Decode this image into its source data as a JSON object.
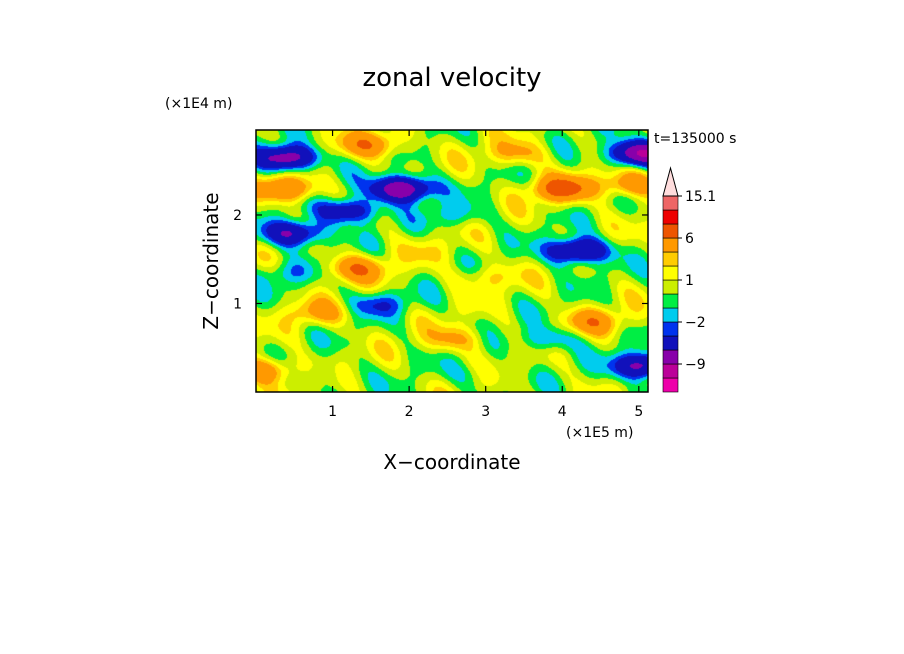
{
  "chart_data": {
    "type": "heatmap",
    "title": "zonal velocity",
    "xlabel": "X−coordinate",
    "ylabel": "Z−coordinate",
    "x_unit_label": "(×1E5 m)",
    "y_unit_label": "(×1E4 m)",
    "time_label": "t=135000 s",
    "xlim": [
      0,
      5.12
    ],
    "ylim": [
      0,
      2.96
    ],
    "x_ticks": [
      1,
      2,
      3,
      4,
      5
    ],
    "y_ticks": [
      1,
      2
    ],
    "x_tick_labels": [
      "1",
      "2",
      "3",
      "4",
      "5"
    ],
    "y_tick_labels": [
      "1",
      "2"
    ],
    "colorbar": {
      "levels": [
        -15,
        -12,
        -9,
        -6,
        -3,
        -2,
        -1,
        0,
        1,
        2,
        3,
        6,
        9,
        12,
        15.1
      ],
      "colors": [
        "#ee00aa",
        "#bb0099",
        "#8800aa",
        "#1111bb",
        "#0033ee",
        "#00ccee",
        "#00ee44",
        "#ccee00",
        "#ffff00",
        "#ffcc00",
        "#ff9900",
        "#ee5500",
        "#ee0000",
        "#ee6666",
        "#f4aaaa",
        "#ffdddd"
      ],
      "tick_labels": [
        "15.1",
        "6",
        "1",
        "−2",
        "−9"
      ],
      "tick_values": [
        15.1,
        6,
        1,
        -2,
        -9
      ],
      "extend": "max"
    },
    "features": [
      {
        "x": 0.4,
        "z": 2.65,
        "value": -9
      },
      {
        "x": 1.9,
        "z": 2.3,
        "value": -10
      },
      {
        "x": 5.0,
        "z": 2.7,
        "value": -10
      },
      {
        "x": 0.5,
        "z": 1.8,
        "value": -7
      },
      {
        "x": 4.2,
        "z": 1.6,
        "value": -8
      },
      {
        "x": 1.2,
        "z": 2.05,
        "value": -6
      },
      {
        "x": 1.5,
        "z": 2.8,
        "value": 5
      },
      {
        "x": 0.4,
        "z": 2.3,
        "value": 6
      },
      {
        "x": 4.0,
        "z": 2.3,
        "value": 7
      },
      {
        "x": 4.9,
        "z": 2.35,
        "value": 5
      },
      {
        "x": 1.3,
        "z": 1.4,
        "value": 5
      },
      {
        "x": 0.8,
        "z": 0.9,
        "value": 3
      },
      {
        "x": 2.6,
        "z": 0.6,
        "value": 3
      },
      {
        "x": 4.4,
        "z": 0.8,
        "value": 4
      },
      {
        "x": 3.4,
        "z": 2.7,
        "value": 3
      },
      {
        "x": 1.6,
        "z": 1.0,
        "value": -3
      },
      {
        "x": 3.8,
        "z": 0.6,
        "value": -3
      },
      {
        "x": 2.6,
        "z": 2.0,
        "value": -2
      },
      {
        "x": 0.4,
        "z": 1.35,
        "value": -2
      },
      {
        "x": 0.1,
        "z": 0.25,
        "value": 5
      },
      {
        "x": 5.05,
        "z": 0.3,
        "value": -8
      },
      {
        "x": 3.0,
        "z": 1.3,
        "value": 2
      },
      {
        "x": 2.2,
        "z": 1.6,
        "value": 1
      },
      {
        "x": 2.8,
        "z": 0.2,
        "value": -1
      },
      {
        "x": 0.9,
        "z": 0.2,
        "value": -1
      }
    ]
  }
}
